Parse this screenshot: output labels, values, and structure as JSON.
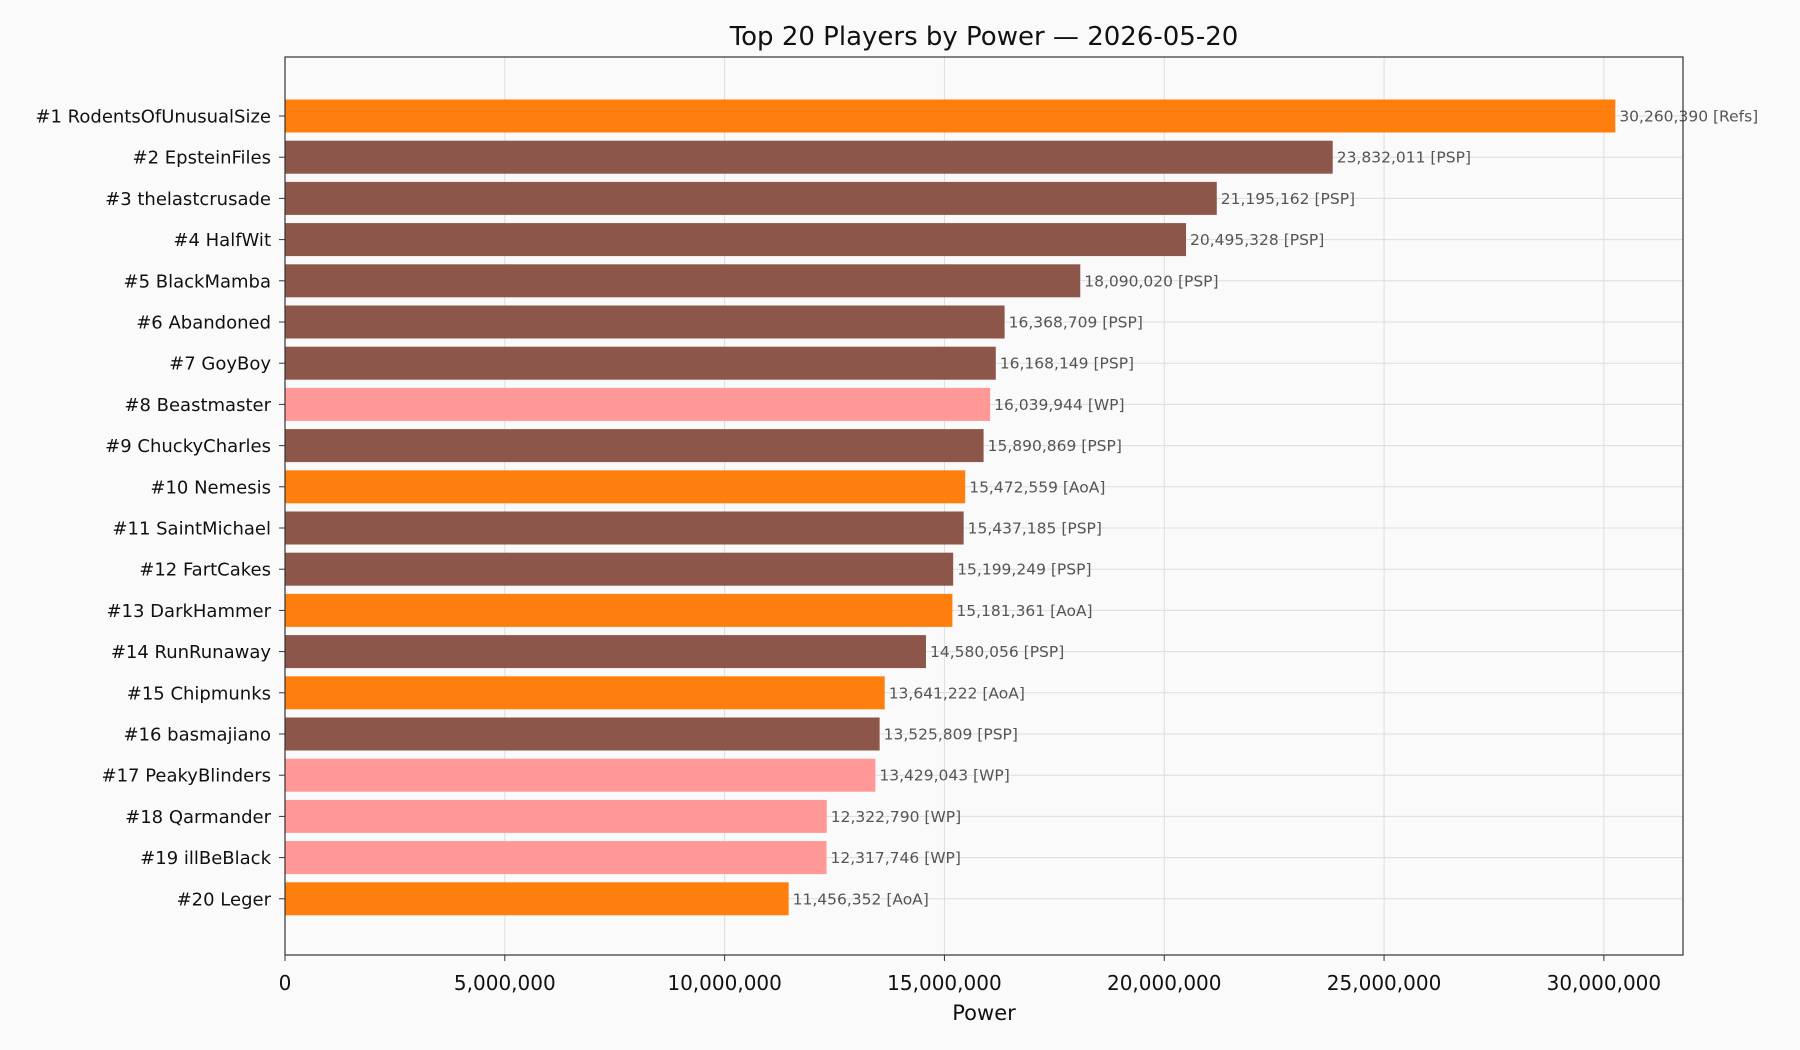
{
  "chart_data": {
    "type": "bar",
    "orientation": "horizontal",
    "title": "Top 20 Players by Power — 2026-05-20",
    "xlabel": "Power",
    "ylabel": "",
    "xlim": [
      0,
      31800000
    ],
    "xticks": [
      0,
      5000000,
      10000000,
      15000000,
      20000000,
      25000000,
      30000000
    ],
    "xtick_labels": [
      "0",
      "5,000,000",
      "10,000,000",
      "15,000,000",
      "20,000,000",
      "25,000,000",
      "30,000,000"
    ],
    "grid": true,
    "legend": "none",
    "alliance_colors": {
      "Refs": "#ff7f0e",
      "AoA": "#ff7f0e",
      "PSP": "#8c564b",
      "WP": "#ff9896"
    },
    "categories": [
      "#1 RodentsOfUnusualSize",
      "#2 EpsteinFiles",
      "#3 thelastcrusade",
      "#4 HalfWit",
      "#5 BlackMamba",
      "#6 Abandoned",
      "#7 GoyBoy",
      "#8 Beastmaster",
      "#9 ChuckyCharles",
      "#10 Nemesis",
      "#11 SaintMichael",
      "#12 FartCakes",
      "#13 DarkHammer",
      "#14 RunRunaway",
      "#15 Chipmunks",
      "#16 basmajiano",
      "#17 PeakyBlinders",
      "#18 Qarmander",
      "#19 illBeBlack",
      "#20 Leger"
    ],
    "values": [
      30260390,
      23832011,
      21195162,
      20495328,
      18090020,
      16368709,
      16168149,
      16039944,
      15890869,
      15472559,
      15437185,
      15199249,
      15181361,
      14580056,
      13641222,
      13525809,
      13429043,
      12322790,
      12317746,
      11456352
    ],
    "value_labels": [
      "30,260,390  [Refs]",
      "23,832,011  [PSP]",
      "21,195,162  [PSP]",
      "20,495,328  [PSP]",
      "18,090,020  [PSP]",
      "16,368,709  [PSP]",
      "16,168,149  [PSP]",
      "16,039,944  [WP]",
      "15,890,869  [PSP]",
      "15,472,559  [AoA]",
      "15,437,185  [PSP]",
      "15,199,249  [PSP]",
      "15,181,361  [AoA]",
      "14,580,056  [PSP]",
      "13,641,222  [AoA]",
      "13,525,809  [PSP]",
      "13,429,043  [WP]",
      "12,322,790  [WP]",
      "12,317,746  [WP]",
      "11,456,352  [AoA]"
    ],
    "alliances": [
      "Refs",
      "PSP",
      "PSP",
      "PSP",
      "PSP",
      "PSP",
      "PSP",
      "WP",
      "PSP",
      "AoA",
      "PSP",
      "PSP",
      "AoA",
      "PSP",
      "AoA",
      "PSP",
      "WP",
      "WP",
      "WP",
      "AoA"
    ]
  }
}
